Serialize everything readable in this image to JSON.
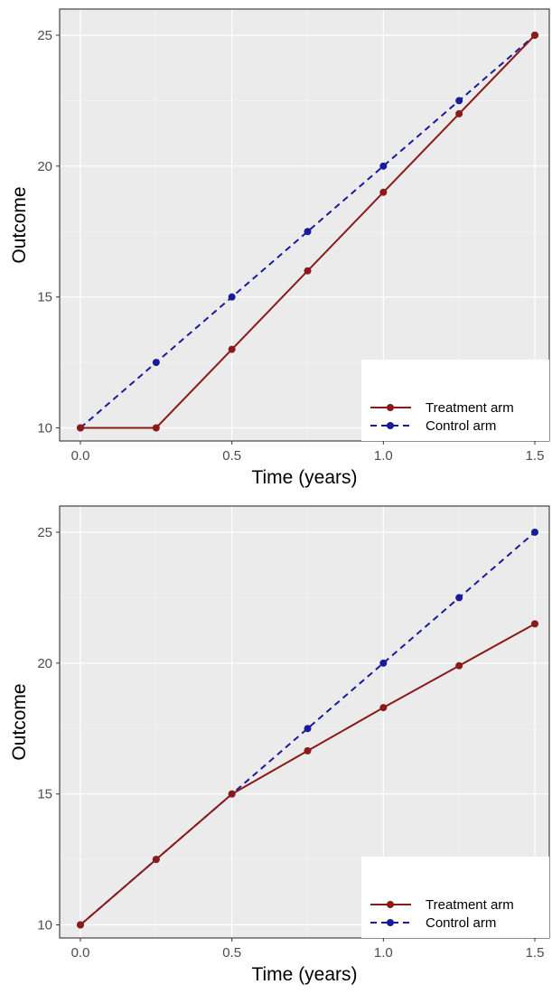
{
  "chart_data": [
    {
      "type": "line",
      "xlabel": "Time (years)",
      "ylabel": "Outcome",
      "xlim": [
        0,
        1.5
      ],
      "ylim": [
        9.5,
        26
      ],
      "xticks": [
        "0.0",
        "0.5",
        "1.0",
        "1.5"
      ],
      "xtick_values": [
        0,
        0.5,
        1.0,
        1.5
      ],
      "yticks": [
        "10",
        "15",
        "20",
        "25"
      ],
      "ytick_values": [
        10,
        15,
        20,
        25
      ],
      "grid": true,
      "legend_position": "bottom-right",
      "x": [
        0,
        0.25,
        0.5,
        0.75,
        1.0,
        1.25,
        1.5
      ],
      "series": [
        {
          "name": "Treatment arm",
          "color": "#8b1a1a",
          "linestyle": "solid",
          "values": [
            10,
            10,
            13,
            16,
            19,
            22,
            25
          ]
        },
        {
          "name": "Control arm",
          "color": "#1a1a9c",
          "linestyle": "dashed",
          "values": [
            10,
            12.5,
            15,
            17.5,
            20,
            22.5,
            25
          ]
        }
      ]
    },
    {
      "type": "line",
      "xlabel": "Time (years)",
      "ylabel": "Outcome",
      "xlim": [
        0,
        1.5
      ],
      "ylim": [
        9.5,
        26
      ],
      "xticks": [
        "0.0",
        "0.5",
        "1.0",
        "1.5"
      ],
      "xtick_values": [
        0,
        0.5,
        1.0,
        1.5
      ],
      "yticks": [
        "10",
        "15",
        "20",
        "25"
      ],
      "ytick_values": [
        10,
        15,
        20,
        25
      ],
      "grid": true,
      "legend_position": "bottom-right",
      "x": [
        0,
        0.25,
        0.5,
        0.75,
        1.0,
        1.25,
        1.5
      ],
      "series": [
        {
          "name": "Treatment arm",
          "color": "#8b1a1a",
          "linestyle": "solid",
          "values": [
            10,
            12.5,
            15,
            16.65,
            18.3,
            19.9,
            21.5
          ]
        },
        {
          "name": "Control arm",
          "color": "#1a1a9c",
          "linestyle": "dashed",
          "values": [
            10,
            12.5,
            15,
            17.5,
            20,
            22.5,
            25
          ]
        }
      ]
    }
  ]
}
